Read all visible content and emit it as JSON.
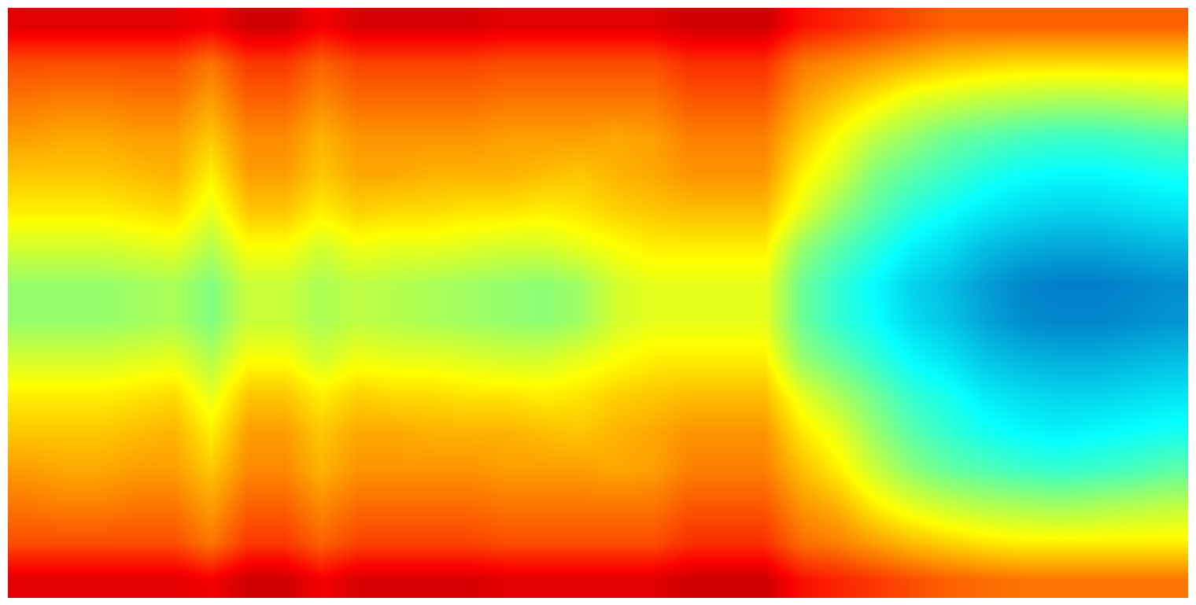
{
  "chart_data": {
    "type": "heatmap",
    "color": "jet",
    "tick_labels": false,
    "zlim": [
      0,
      1
    ],
    "cells": [
      [
        0.9,
        0.9,
        0.9,
        0.9,
        0.9,
        0.88,
        0.92,
        0.92,
        0.88,
        0.91,
        0.91,
        0.91,
        0.91,
        0.9,
        0.9,
        0.9,
        0.9,
        0.9,
        0.92,
        0.92,
        0.92,
        0.86,
        0.84,
        0.82,
        0.8,
        0.78,
        0.78,
        0.78,
        0.78,
        0.78,
        0.78,
        0.78
      ],
      [
        0.8,
        0.8,
        0.8,
        0.8,
        0.8,
        0.76,
        0.82,
        0.82,
        0.78,
        0.81,
        0.81,
        0.81,
        0.81,
        0.8,
        0.8,
        0.8,
        0.8,
        0.8,
        0.83,
        0.83,
        0.83,
        0.76,
        0.74,
        0.72,
        0.7,
        0.68,
        0.67,
        0.66,
        0.66,
        0.66,
        0.66,
        0.66
      ],
      [
        0.76,
        0.75,
        0.75,
        0.76,
        0.76,
        0.72,
        0.78,
        0.78,
        0.74,
        0.77,
        0.77,
        0.77,
        0.77,
        0.76,
        0.76,
        0.76,
        0.76,
        0.76,
        0.79,
        0.79,
        0.79,
        0.72,
        0.68,
        0.64,
        0.6,
        0.58,
        0.56,
        0.55,
        0.54,
        0.54,
        0.55,
        0.56
      ],
      [
        0.72,
        0.71,
        0.71,
        0.72,
        0.72,
        0.68,
        0.74,
        0.74,
        0.7,
        0.73,
        0.73,
        0.73,
        0.73,
        0.72,
        0.72,
        0.72,
        0.71,
        0.72,
        0.75,
        0.75,
        0.75,
        0.68,
        0.62,
        0.56,
        0.52,
        0.48,
        0.46,
        0.44,
        0.43,
        0.43,
        0.44,
        0.45
      ],
      [
        0.68,
        0.68,
        0.68,
        0.69,
        0.7,
        0.64,
        0.72,
        0.72,
        0.68,
        0.71,
        0.71,
        0.7,
        0.7,
        0.7,
        0.69,
        0.68,
        0.7,
        0.71,
        0.73,
        0.73,
        0.73,
        0.64,
        0.58,
        0.5,
        0.46,
        0.43,
        0.4,
        0.38,
        0.37,
        0.37,
        0.38,
        0.39
      ],
      [
        0.64,
        0.64,
        0.64,
        0.65,
        0.66,
        0.6,
        0.68,
        0.68,
        0.64,
        0.67,
        0.66,
        0.66,
        0.65,
        0.65,
        0.64,
        0.65,
        0.67,
        0.68,
        0.69,
        0.69,
        0.69,
        0.6,
        0.52,
        0.46,
        0.41,
        0.38,
        0.35,
        0.33,
        0.32,
        0.32,
        0.33,
        0.34
      ],
      [
        0.58,
        0.58,
        0.58,
        0.59,
        0.6,
        0.55,
        0.62,
        0.62,
        0.58,
        0.61,
        0.6,
        0.6,
        0.59,
        0.58,
        0.58,
        0.6,
        0.62,
        0.64,
        0.64,
        0.64,
        0.64,
        0.52,
        0.46,
        0.41,
        0.36,
        0.33,
        0.29,
        0.27,
        0.26,
        0.26,
        0.27,
        0.28
      ],
      [
        0.52,
        0.52,
        0.52,
        0.53,
        0.54,
        0.5,
        0.57,
        0.57,
        0.54,
        0.56,
        0.55,
        0.54,
        0.53,
        0.52,
        0.51,
        0.53,
        0.58,
        0.6,
        0.6,
        0.6,
        0.6,
        0.48,
        0.42,
        0.37,
        0.32,
        0.29,
        0.25,
        0.22,
        0.21,
        0.21,
        0.22,
        0.23
      ],
      [
        0.52,
        0.52,
        0.52,
        0.53,
        0.54,
        0.5,
        0.57,
        0.57,
        0.54,
        0.56,
        0.55,
        0.54,
        0.53,
        0.52,
        0.51,
        0.53,
        0.58,
        0.6,
        0.6,
        0.6,
        0.6,
        0.48,
        0.42,
        0.38,
        0.33,
        0.3,
        0.26,
        0.23,
        0.22,
        0.22,
        0.23,
        0.24
      ],
      [
        0.58,
        0.58,
        0.58,
        0.59,
        0.6,
        0.55,
        0.62,
        0.62,
        0.58,
        0.61,
        0.6,
        0.6,
        0.59,
        0.58,
        0.58,
        0.6,
        0.62,
        0.64,
        0.64,
        0.64,
        0.64,
        0.52,
        0.47,
        0.42,
        0.37,
        0.34,
        0.3,
        0.28,
        0.27,
        0.27,
        0.28,
        0.29
      ],
      [
        0.64,
        0.64,
        0.64,
        0.65,
        0.66,
        0.6,
        0.68,
        0.68,
        0.64,
        0.67,
        0.66,
        0.66,
        0.65,
        0.65,
        0.64,
        0.65,
        0.67,
        0.68,
        0.69,
        0.69,
        0.69,
        0.6,
        0.54,
        0.48,
        0.42,
        0.39,
        0.35,
        0.33,
        0.32,
        0.32,
        0.33,
        0.34
      ],
      [
        0.68,
        0.68,
        0.68,
        0.69,
        0.7,
        0.64,
        0.72,
        0.72,
        0.68,
        0.71,
        0.71,
        0.7,
        0.7,
        0.7,
        0.69,
        0.68,
        0.7,
        0.71,
        0.73,
        0.73,
        0.73,
        0.65,
        0.6,
        0.52,
        0.46,
        0.42,
        0.39,
        0.37,
        0.36,
        0.37,
        0.38,
        0.39
      ],
      [
        0.72,
        0.71,
        0.71,
        0.72,
        0.72,
        0.68,
        0.74,
        0.74,
        0.7,
        0.73,
        0.73,
        0.73,
        0.73,
        0.72,
        0.72,
        0.72,
        0.71,
        0.72,
        0.75,
        0.75,
        0.75,
        0.69,
        0.64,
        0.57,
        0.51,
        0.47,
        0.45,
        0.43,
        0.42,
        0.43,
        0.44,
        0.46
      ],
      [
        0.76,
        0.75,
        0.75,
        0.76,
        0.76,
        0.72,
        0.78,
        0.78,
        0.74,
        0.77,
        0.77,
        0.77,
        0.77,
        0.76,
        0.76,
        0.76,
        0.76,
        0.76,
        0.79,
        0.79,
        0.79,
        0.73,
        0.7,
        0.64,
        0.6,
        0.57,
        0.55,
        0.54,
        0.53,
        0.54,
        0.55,
        0.56
      ],
      [
        0.8,
        0.8,
        0.8,
        0.8,
        0.8,
        0.76,
        0.82,
        0.82,
        0.78,
        0.81,
        0.81,
        0.81,
        0.81,
        0.8,
        0.8,
        0.8,
        0.8,
        0.8,
        0.83,
        0.83,
        0.83,
        0.77,
        0.75,
        0.72,
        0.69,
        0.67,
        0.65,
        0.64,
        0.64,
        0.64,
        0.64,
        0.64
      ],
      [
        0.9,
        0.9,
        0.9,
        0.9,
        0.9,
        0.88,
        0.92,
        0.92,
        0.88,
        0.91,
        0.91,
        0.91,
        0.91,
        0.9,
        0.9,
        0.9,
        0.9,
        0.9,
        0.92,
        0.92,
        0.92,
        0.86,
        0.84,
        0.82,
        0.8,
        0.78,
        0.77,
        0.76,
        0.76,
        0.76,
        0.76,
        0.76
      ]
    ]
  }
}
